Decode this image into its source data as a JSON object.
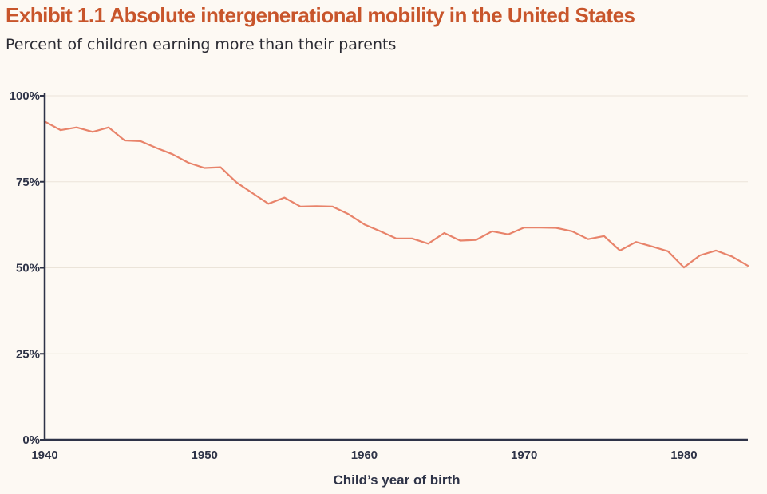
{
  "chart_data": {
    "type": "line",
    "title": "Exhibit 1.1 Absolute intergenerational mobility in the United States",
    "subtitle": "Percent of children earning more than their parents",
    "xlabel": "Child’s year of birth",
    "ylabel": "",
    "xlim": [
      1940,
      1984
    ],
    "ylim": [
      0,
      100
    ],
    "x_ticks": [
      1940,
      1950,
      1960,
      1970,
      1980
    ],
    "x_tick_labels": [
      "1940",
      "1950",
      "1960",
      "1970",
      "1980"
    ],
    "y_ticks": [
      0,
      25,
      50,
      75,
      100
    ],
    "y_tick_labels": [
      "0%",
      "25%",
      "50%",
      "75%",
      "100%"
    ],
    "grid": true,
    "colors": {
      "line": "#e8836a",
      "axis": "#2e3347",
      "grid": "#ebe4d9",
      "title": "#c8552b"
    },
    "series": [
      {
        "name": "Percent of children earning more than their parents",
        "x": [
          1940,
          1941,
          1942,
          1943,
          1944,
          1945,
          1946,
          1947,
          1948,
          1949,
          1950,
          1951,
          1952,
          1953,
          1954,
          1955,
          1956,
          1957,
          1958,
          1959,
          1960,
          1961,
          1962,
          1963,
          1964,
          1965,
          1966,
          1967,
          1968,
          1969,
          1970,
          1971,
          1972,
          1973,
          1974,
          1975,
          1976,
          1977,
          1978,
          1979,
          1980,
          1981,
          1982,
          1983,
          1984
        ],
        "values": [
          92.5,
          90.0,
          90.8,
          89.5,
          90.8,
          87.0,
          86.8,
          84.8,
          83.0,
          80.5,
          79.0,
          79.2,
          74.8,
          71.7,
          68.6,
          70.4,
          67.8,
          67.9,
          67.8,
          65.6,
          62.6,
          60.6,
          58.5,
          58.5,
          57.0,
          60.1,
          57.9,
          58.1,
          60.6,
          59.7,
          61.7,
          61.7,
          61.6,
          60.6,
          58.3,
          59.2,
          55.0,
          57.5,
          56.2,
          54.8,
          50.1,
          53.6,
          55.0,
          53.3,
          50.6
        ]
      }
    ]
  }
}
